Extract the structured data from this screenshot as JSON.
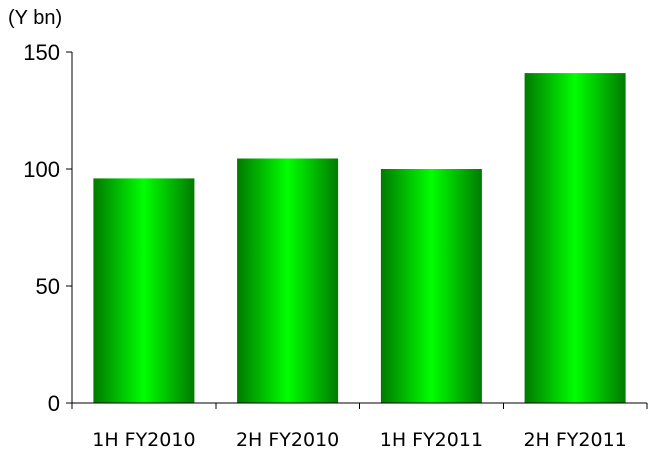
{
  "chart_data": {
    "type": "bar",
    "title": "",
    "unit_label": "(Y bn)",
    "xlabel": "",
    "ylabel": "",
    "categories": [
      "1H FY2010",
      "2H FY2010",
      "1H FY2011",
      "2H FY2011"
    ],
    "series": [
      {
        "values": [
          96,
          104.5,
          100,
          141
        ]
      }
    ],
    "ylim": [
      0,
      150
    ],
    "yticks": [
      0,
      50,
      100,
      150
    ],
    "grid": false,
    "legend": "none",
    "bar_color_dark": "#007a00",
    "bar_color_light": "#00ff00"
  }
}
